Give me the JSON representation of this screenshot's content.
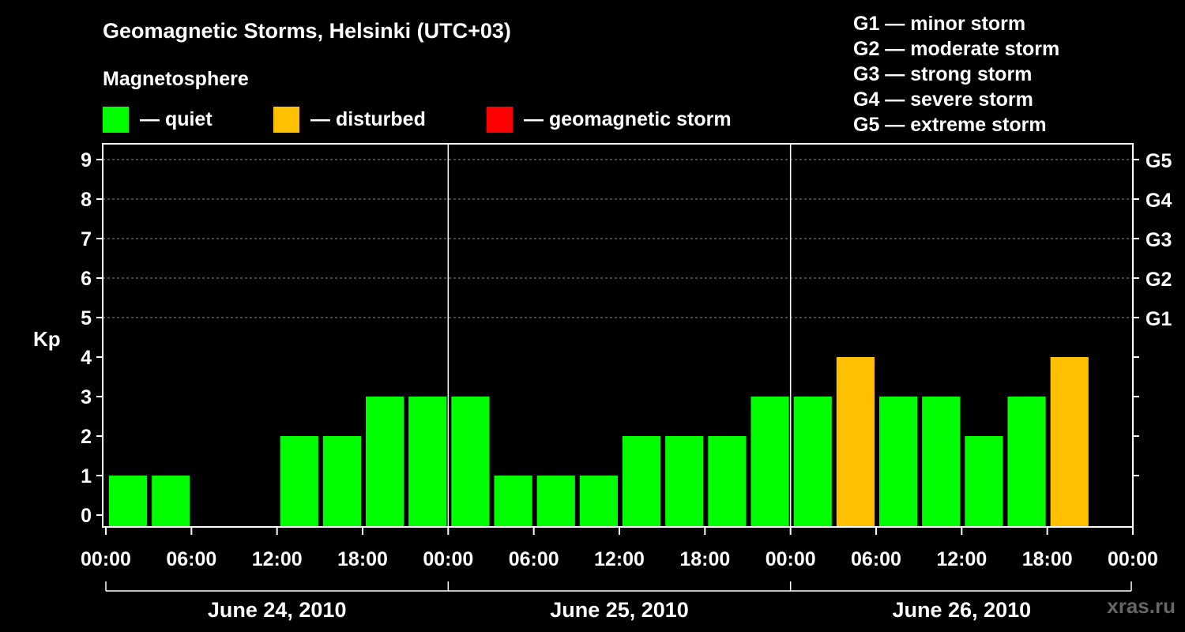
{
  "chart_data": {
    "type": "bar",
    "title": "Geomagnetic Storms, Helsinki (UTC+03)",
    "subtitle": "Magnetosphere",
    "ylabel": "Kp",
    "ylim": [
      0,
      9
    ],
    "y_ticks": [
      "0",
      "1",
      "2",
      "3",
      "4",
      "5",
      "6",
      "7",
      "8",
      "9"
    ],
    "storm_ticks": [
      {
        "level": 5,
        "label": "G1"
      },
      {
        "level": 6,
        "label": "G2"
      },
      {
        "level": 7,
        "label": "G3"
      },
      {
        "level": 8,
        "label": "G4"
      },
      {
        "level": 9,
        "label": "G5"
      }
    ],
    "x_ticks": [
      "00:00",
      "06:00",
      "12:00",
      "18:00",
      "00:00",
      "06:00",
      "12:00",
      "18:00",
      "00:00",
      "06:00",
      "12:00",
      "18:00",
      "00:00"
    ],
    "days": [
      "June 24, 2010",
      "June 25, 2010",
      "June 26, 2010"
    ],
    "interval_hours": 3,
    "values": [
      1,
      1,
      0,
      0,
      2,
      2,
      3,
      3,
      3,
      1,
      1,
      1,
      2,
      2,
      2,
      3,
      3,
      4,
      3,
      3,
      2,
      3,
      4
    ],
    "colors": {
      "quiet": "#00ff00",
      "disturbed": "#ffc000",
      "storm": "#ff0000"
    },
    "legend": [
      {
        "key": "quiet",
        "label": "— quiet"
      },
      {
        "key": "disturbed",
        "label": "— disturbed"
      },
      {
        "key": "storm",
        "label": "— geomagnetic storm"
      }
    ],
    "storm_scale": [
      "G1 — minor storm",
      "G2 — moderate storm",
      "G3 — strong storm",
      "G4 — severe storm",
      "G5 — extreme storm"
    ],
    "grid": true
  },
  "watermark": "xras.ru"
}
